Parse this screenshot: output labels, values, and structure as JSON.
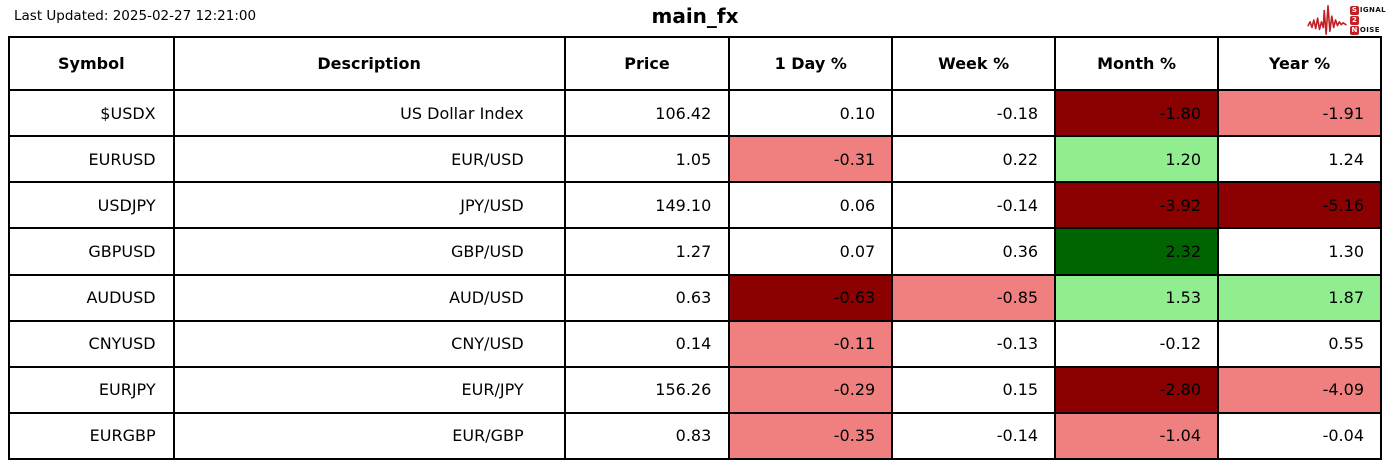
{
  "meta": {
    "last_updated": "Last Updated: 2025-02-27 12:21:00",
    "title": "main_fx"
  },
  "logo": {
    "line1_badge": "S",
    "line1_rest": "IGNAL",
    "line2_badge": "2",
    "line3_badge": "N",
    "line3_rest": "OISE",
    "accent": "#c22026"
  },
  "colors": {
    "white": "#ffffff",
    "darkred": "#8b0000",
    "lightred": "#f08080",
    "lightgreen": "#90ee90",
    "darkgreen": "#006400"
  },
  "table": {
    "headers": [
      "Symbol",
      "Description",
      "Price",
      "1 Day %",
      "Week %",
      "Month %",
      "Year %"
    ],
    "rows": [
      {
        "symbol": "$USDX",
        "description": "US Dollar Index",
        "price": "106.42",
        "pct": [
          {
            "v": "0.10",
            "bg": "white"
          },
          {
            "v": "-0.18",
            "bg": "white"
          },
          {
            "v": "-1.80",
            "bg": "darkred"
          },
          {
            "v": "-1.91",
            "bg": "lightred"
          }
        ]
      },
      {
        "symbol": "EURUSD",
        "description": "EUR/USD",
        "price": "1.05",
        "pct": [
          {
            "v": "-0.31",
            "bg": "lightred"
          },
          {
            "v": "0.22",
            "bg": "white"
          },
          {
            "v": "1.20",
            "bg": "lightgreen"
          },
          {
            "v": "1.24",
            "bg": "white"
          }
        ]
      },
      {
        "symbol": "USDJPY",
        "description": "JPY/USD",
        "price": "149.10",
        "pct": [
          {
            "v": "0.06",
            "bg": "white"
          },
          {
            "v": "-0.14",
            "bg": "white"
          },
          {
            "v": "-3.92",
            "bg": "darkred"
          },
          {
            "v": "-5.16",
            "bg": "darkred"
          }
        ]
      },
      {
        "symbol": "GBPUSD",
        "description": "GBP/USD",
        "price": "1.27",
        "pct": [
          {
            "v": "0.07",
            "bg": "white"
          },
          {
            "v": "0.36",
            "bg": "white"
          },
          {
            "v": "2.32",
            "bg": "darkgreen"
          },
          {
            "v": "1.30",
            "bg": "white"
          }
        ]
      },
      {
        "symbol": "AUDUSD",
        "description": "AUD/USD",
        "price": "0.63",
        "pct": [
          {
            "v": "-0.63",
            "bg": "darkred"
          },
          {
            "v": "-0.85",
            "bg": "lightred"
          },
          {
            "v": "1.53",
            "bg": "lightgreen"
          },
          {
            "v": "1.87",
            "bg": "lightgreen"
          }
        ]
      },
      {
        "symbol": "CNYUSD",
        "description": "CNY/USD",
        "price": "0.14",
        "pct": [
          {
            "v": "-0.11",
            "bg": "lightred"
          },
          {
            "v": "-0.13",
            "bg": "white"
          },
          {
            "v": "-0.12",
            "bg": "white"
          },
          {
            "v": "0.55",
            "bg": "white"
          }
        ]
      },
      {
        "symbol": "EURJPY",
        "description": "EUR/JPY",
        "price": "156.26",
        "pct": [
          {
            "v": "-0.29",
            "bg": "lightred"
          },
          {
            "v": "0.15",
            "bg": "white"
          },
          {
            "v": "-2.80",
            "bg": "darkred"
          },
          {
            "v": "-4.09",
            "bg": "lightred"
          }
        ]
      },
      {
        "symbol": "EURGBP",
        "description": "EUR/GBP",
        "price": "0.83",
        "pct": [
          {
            "v": "-0.35",
            "bg": "lightred"
          },
          {
            "v": "-0.14",
            "bg": "white"
          },
          {
            "v": "-1.04",
            "bg": "lightred"
          },
          {
            "v": "-0.04",
            "bg": "white"
          }
        ]
      }
    ]
  }
}
